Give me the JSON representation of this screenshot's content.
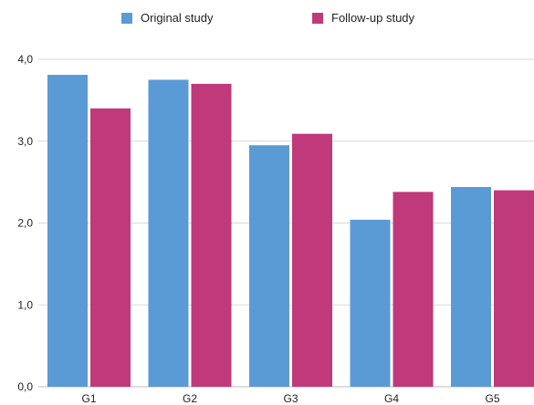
{
  "chart_data": {
    "type": "bar",
    "categories": [
      "G1",
      "G2",
      "G3",
      "G4",
      "G5"
    ],
    "series": [
      {
        "name": "Original study",
        "color": "#5b9bd5",
        "values": [
          3.81,
          3.75,
          2.95,
          2.04,
          2.44
        ]
      },
      {
        "name": "Follow-up study",
        "color": "#c0397a",
        "values": [
          3.4,
          3.7,
          3.09,
          2.38,
          2.4
        ]
      }
    ],
    "y_ticks": [
      "0,0",
      "1,0",
      "2,0",
      "3,0",
      "4,0"
    ],
    "ylim": [
      0,
      4
    ],
    "grid": true,
    "legend_position": "top",
    "gridline_color": "#d9d9d9"
  }
}
